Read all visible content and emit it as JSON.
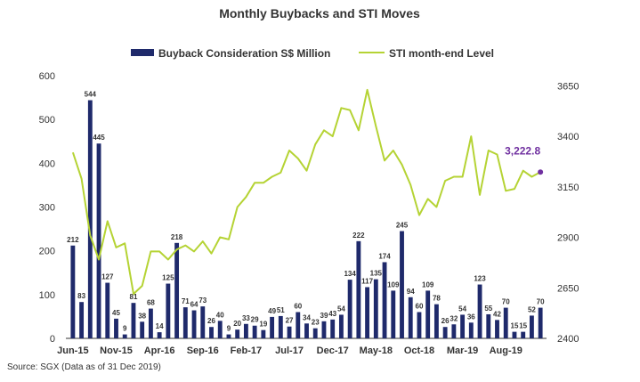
{
  "chart_data": {
    "type": "bar+line",
    "title": "Monthly Buybacks and STI Moves",
    "source": "Source: SGX (Data as of 31 Dec 2019)",
    "colors": {
      "bar": "#1f2a6b",
      "line": "#b5d334",
      "last_point": "#7030a0"
    },
    "legend_position": "top",
    "grid": false,
    "left_axis": {
      "range": [
        0,
        600
      ],
      "ticks": [
        "0",
        "100",
        "200",
        "300",
        "400",
        "500",
        "600"
      ]
    },
    "right_axis": {
      "range": [
        2400,
        3700
      ],
      "ticks": [
        "2400",
        "2650",
        "2900",
        "3150",
        "3400",
        "3650"
      ]
    },
    "x_tick_labels": [
      {
        "i": 0,
        "label": "Jun-15"
      },
      {
        "i": 5,
        "label": "Nov-15"
      },
      {
        "i": 10,
        "label": "Apr-16"
      },
      {
        "i": 15,
        "label": "Sep-16"
      },
      {
        "i": 20,
        "label": "Feb-17"
      },
      {
        "i": 25,
        "label": "Jul-17"
      },
      {
        "i": 30,
        "label": "Dec-17"
      },
      {
        "i": 35,
        "label": "May-18"
      },
      {
        "i": 40,
        "label": "Oct-18"
      },
      {
        "i": 45,
        "label": "Mar-19"
      },
      {
        "i": 50,
        "label": "Aug-19"
      }
    ],
    "series": [
      {
        "name": "Buyback Consideration S$ Million",
        "type": "bar",
        "axis": "left",
        "values": [
          212,
          83,
          544,
          445,
          127,
          45,
          9,
          81,
          38,
          68,
          14,
          125,
          218,
          71,
          64,
          73,
          26,
          40,
          9,
          20,
          33,
          29,
          19,
          49,
          51,
          27,
          60,
          34,
          23,
          39,
          43,
          54,
          134,
          222,
          117,
          135,
          174,
          109,
          245,
          94,
          60,
          109,
          78,
          26,
          32,
          54,
          36,
          123,
          55,
          42,
          70,
          15,
          15,
          52,
          70
        ]
      },
      {
        "name": "STI month-end Level",
        "type": "line",
        "axis": "right",
        "values": [
          3320,
          3190,
          2910,
          2790,
          2980,
          2850,
          2870,
          2620,
          2660,
          2830,
          2830,
          2790,
          2840,
          2860,
          2830,
          2880,
          2820,
          2900,
          2890,
          3050,
          3100,
          3170,
          3170,
          3200,
          3220,
          3330,
          3290,
          3230,
          3360,
          3430,
          3400,
          3540,
          3530,
          3430,
          3630,
          3450,
          3280,
          3330,
          3260,
          3160,
          3010,
          3090,
          3050,
          3180,
          3200,
          3200,
          3400,
          3110,
          3330,
          3310,
          3130,
          3140,
          3230,
          3200,
          3222.8
        ]
      }
    ],
    "annotation": "3,222.8"
  }
}
